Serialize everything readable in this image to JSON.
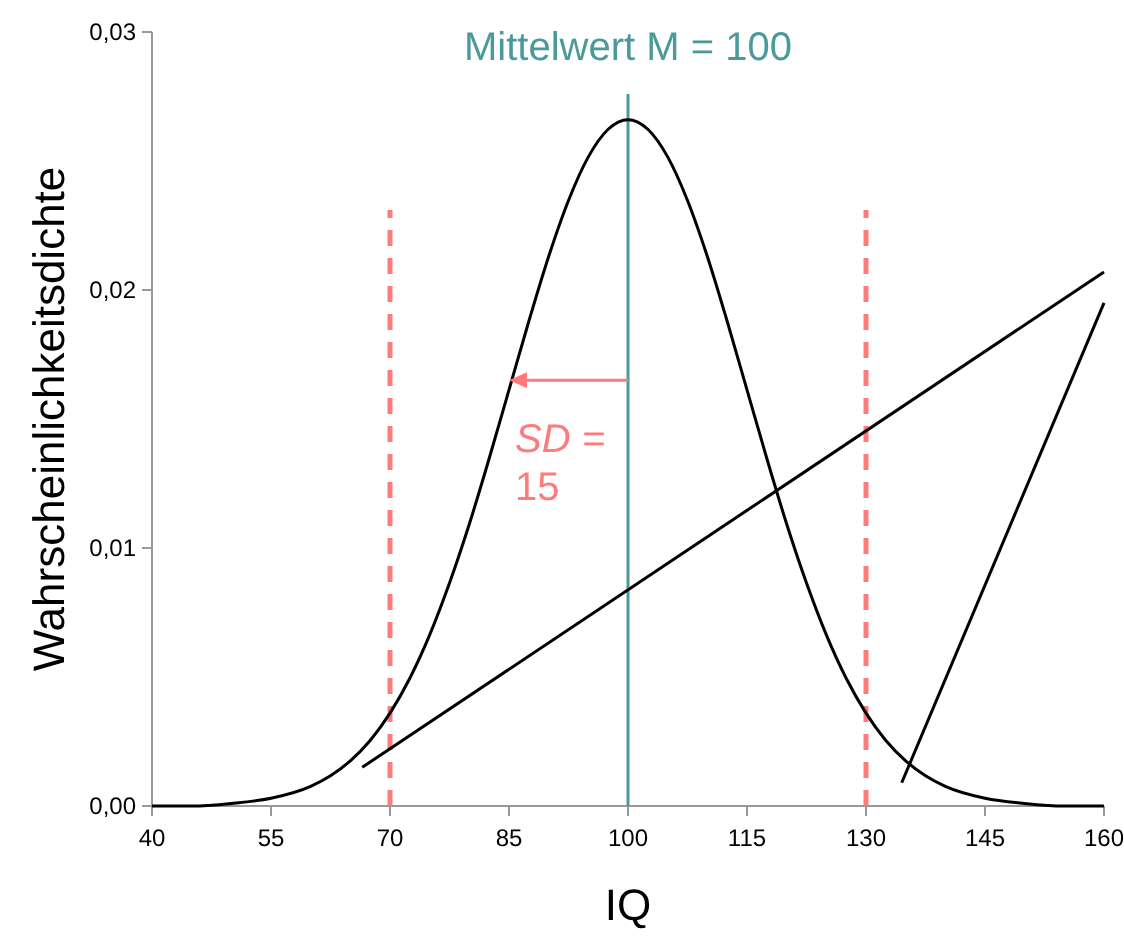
{
  "chart_data": {
    "type": "line",
    "xlabel": "IQ",
    "ylabel": "Wahrscheinlichkeitsdichte",
    "xlim": [
      40,
      160
    ],
    "ylim": [
      0,
      0.03
    ],
    "xticks": [
      40,
      55,
      70,
      85,
      100,
      115,
      130,
      145,
      160
    ],
    "yticks": [
      {
        "value": 0,
        "label": "0,00"
      },
      {
        "value": 0.01,
        "label": "0,01"
      },
      {
        "value": 0.02,
        "label": "0,02"
      },
      {
        "value": 0.03,
        "label": "0,03"
      }
    ],
    "grid": false,
    "marker": "none",
    "line_style": "solid",
    "series": [
      {
        "color": "#000000",
        "x": [
          40,
          45,
          50,
          55,
          60,
          62.5,
          65,
          67.5,
          70,
          72.5,
          75,
          77.5,
          80,
          82.5,
          85,
          87.5,
          90,
          92.5,
          95,
          97.5,
          100,
          102.5,
          105,
          107.5,
          110,
          112.5,
          115,
          117.5,
          120,
          122.5,
          125,
          127.5,
          130,
          132.5,
          135,
          137.5,
          140,
          145,
          150,
          155,
          160
        ],
        "values": [
          0,
          0,
          0.0001,
          0.0003,
          0.00076,
          0.00117,
          0.00175,
          0.00254,
          0.0036,
          0.00495,
          0.00663,
          0.00864,
          0.01093,
          0.01347,
          0.01613,
          0.01879,
          0.0213,
          0.02347,
          0.02516,
          0.02623,
          0.0266,
          0.02623,
          0.02516,
          0.02347,
          0.0213,
          0.01879,
          0.01613,
          0.01347,
          0.01093,
          0.00864,
          0.00663,
          0.00495,
          0.0036,
          0.00254,
          0.00175,
          0.00117,
          0.00076,
          0.0003,
          0.0001,
          0,
          0
        ]
      },
      {
        "color": "#000000",
        "x": [
          66.5,
          160
        ],
        "values": [
          0.0015,
          0.0207
        ]
      },
      {
        "color": "#000000",
        "x": [
          134.5,
          160
        ],
        "values": [
          0.0009,
          0.0195
        ]
      }
    ],
    "ref_lines": [
      {
        "axis": "x",
        "value": 100,
        "label": "Mittelwert M = 100",
        "color": "#4a9a9c",
        "line_style": "solid"
      },
      {
        "axis": "x",
        "value": 70,
        "label": null,
        "color": "#ff7b7b",
        "line_style": "dashed"
      },
      {
        "axis": "x",
        "value": 130,
        "label": null,
        "color": "#ff7b7b",
        "line_style": "dashed"
      }
    ],
    "annotations": [
      {
        "text": "SD = 15",
        "x": 85,
        "y": 0.0165
      }
    ]
  }
}
